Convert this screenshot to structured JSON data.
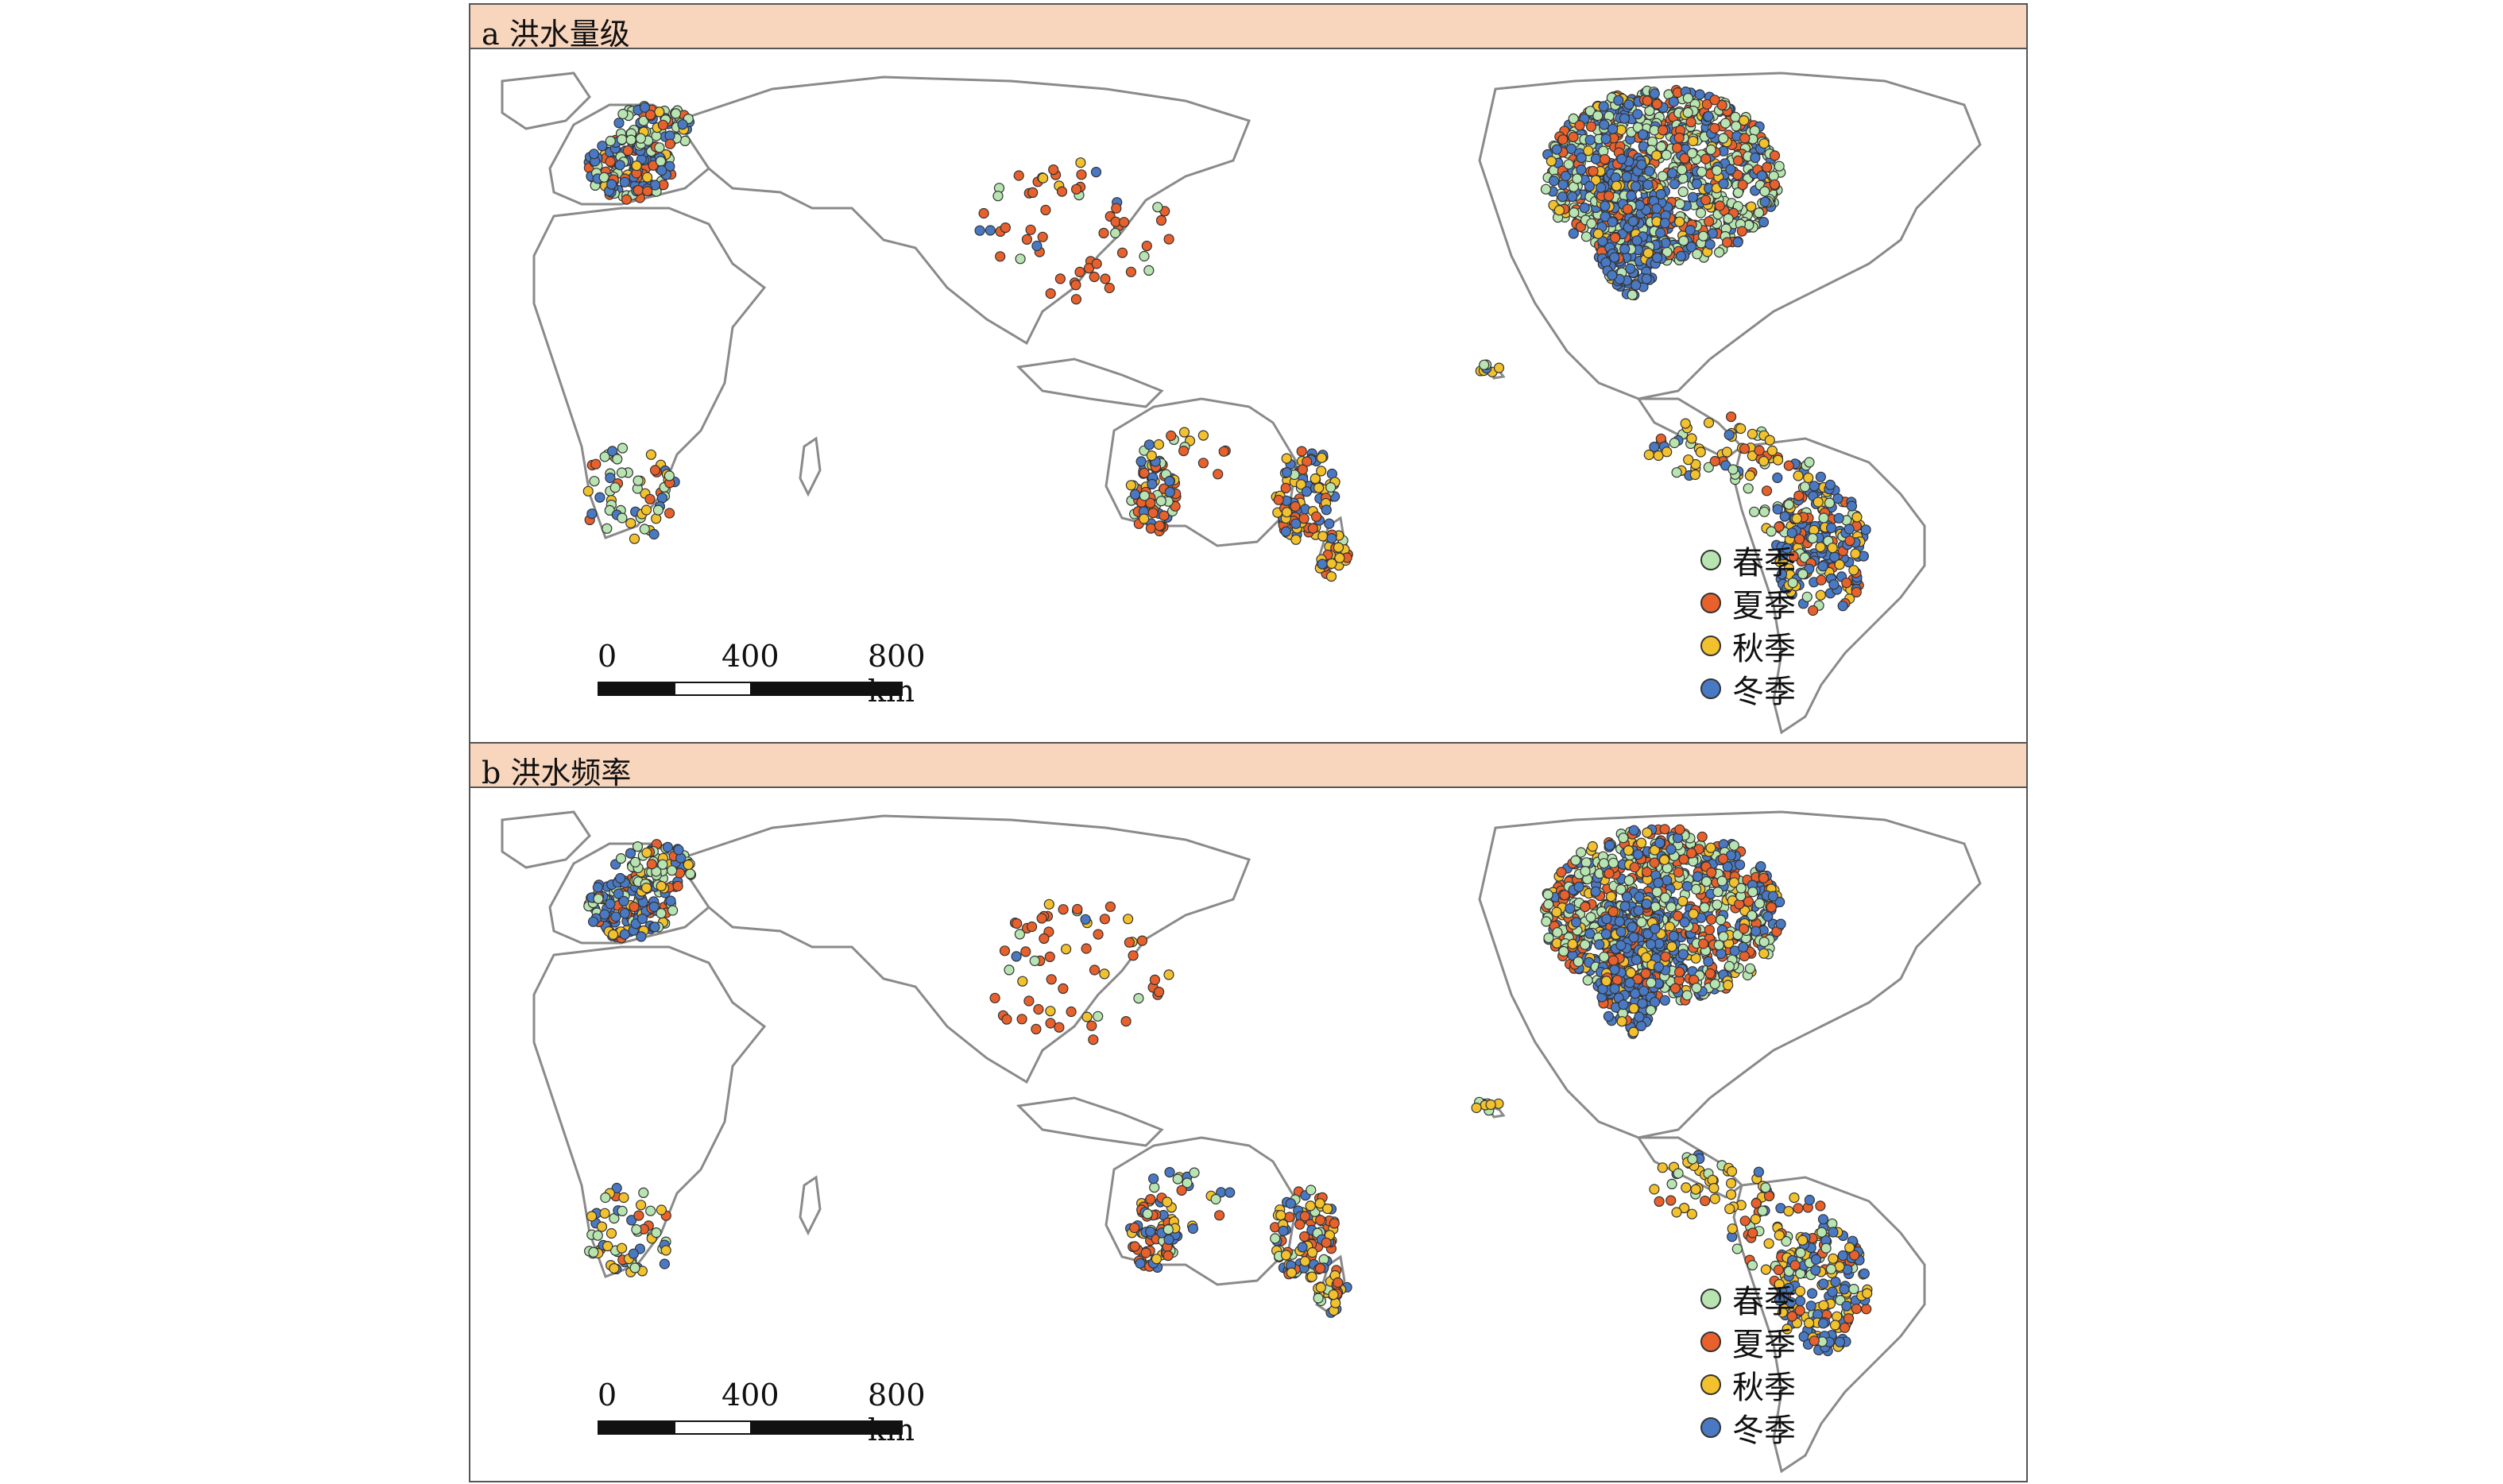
{
  "panels": [
    {
      "title": "a 洪水量级",
      "legend": [
        {
          "label": "春季",
          "color": "#b7e4b0"
        },
        {
          "label": "夏季",
          "color": "#e8612c"
        },
        {
          "label": "秋季",
          "color": "#f2c12e"
        },
        {
          "label": "冬季",
          "color": "#4a79c4"
        }
      ],
      "scale": {
        "labels": [
          "0",
          "400",
          "800 km"
        ]
      }
    },
    {
      "title": "b 洪水频率",
      "legend": [
        {
          "label": "春季",
          "color": "#b7e4b0"
        },
        {
          "label": "夏季",
          "color": "#e8612c"
        },
        {
          "label": "秋季",
          "color": "#f2c12e"
        },
        {
          "label": "冬季",
          "color": "#4a79c4"
        }
      ],
      "scale": {
        "labels": [
          "0",
          "400",
          "800 km"
        ]
      }
    }
  ],
  "colors": {
    "header_bg": "#f8d5bd",
    "land_outline": "#8a8a8a",
    "spring": "#b7e4b0",
    "summer": "#e8612c",
    "autumn": "#f2c12e",
    "winter": "#4a79c4"
  }
}
